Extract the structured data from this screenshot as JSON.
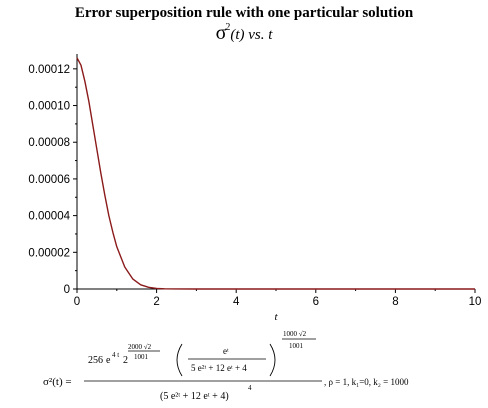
{
  "title": "Error superposition rule with one particular solution",
  "subtitle": {
    "symbol": "σ",
    "power": "2",
    "rest": "(t)",
    "vs": "vs. t"
  },
  "chart_data": {
    "type": "line",
    "title": "Error superposition rule with one particular solution",
    "xlabel": "t",
    "ylabel": "",
    "xlim": [
      0,
      10
    ],
    "ylim": [
      0,
      0.000127
    ],
    "x_ticks": [
      "0",
      "2",
      "4",
      "6",
      "8",
      "10"
    ],
    "y_ticks": [
      "0",
      "0.00002",
      "0.00004",
      "0.00006",
      "0.00008",
      "0.00010",
      "0.00012"
    ],
    "grid": false,
    "series": [
      {
        "color": "#8b1a1a",
        "x": [
          0,
          0.1,
          0.2,
          0.3,
          0.4,
          0.5,
          0.6,
          0.7,
          0.8,
          0.9,
          1.0,
          1.2,
          1.4,
          1.6,
          1.8,
          2.0,
          2.2,
          2.5,
          3.0,
          4.0,
          6.0,
          8.0,
          10.0
        ],
        "y": [
          0.000126,
          0.000122,
          0.000113,
          0.000102,
          8.9e-05,
          7.6e-05,
          6.3e-05,
          5.1e-05,
          4e-05,
          3.1e-05,
          2.3e-05,
          1.2e-05,
          5.5e-06,
          2.3e-06,
          9e-07,
          3.2e-07,
          1e-07,
          2e-08,
          0,
          0,
          0,
          0,
          0
        ]
      }
    ]
  },
  "formula": {
    "lhs": "σ²(t) =",
    "coef": "256",
    "exp_e": "4 t",
    "base2": "2",
    "exp2_num": "2000 √2",
    "exp2_den": "1001",
    "inner_num": "eᵗ",
    "inner_den": "5 e²ᵗ + 12 eᵗ + 4",
    "outer_exp_num": "1000 √2",
    "outer_exp_den": "1001",
    "denominator": "(5 e²ᵗ + 12 eᵗ + 4)",
    "denominator_power": "4",
    "params": ", ρ = 1, k₁=0, k₂ = 1000"
  }
}
